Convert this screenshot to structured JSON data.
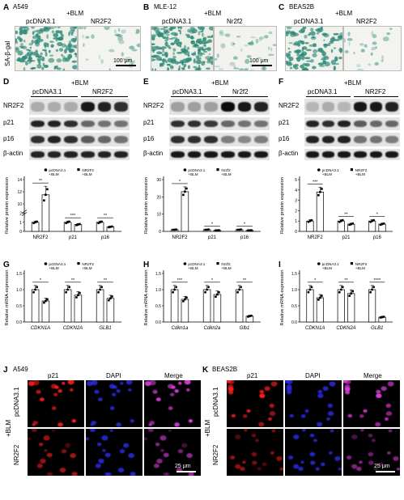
{
  "row1": {
    "A": {
      "letter": "A",
      "cell": "A549",
      "treat": "+BLM",
      "cond": [
        "pcDNA3.1",
        "NR2F2"
      ],
      "ylabel": "SA-β-gal",
      "scale": "100 μm"
    },
    "B": {
      "letter": "B",
      "cell": "MLE-12",
      "treat": "+BLM",
      "cond": [
        "pcDNA3.1",
        "Nr2f2"
      ],
      "scale": "100 μm"
    },
    "C": {
      "letter": "C",
      "cell": "BEAS2B",
      "treat": "+BLM",
      "cond": [
        "pcDNA3.1",
        "NR2F2"
      ]
    }
  },
  "blots": [
    {
      "letter": "D",
      "treat": "+BLM",
      "cond": [
        "pcDNA3.1",
        "NR2F2"
      ],
      "rows": [
        "NR2F2",
        "p21",
        "p16",
        "β-actin"
      ]
    },
    {
      "letter": "E",
      "treat": "+BLM",
      "cond": [
        "pcDNA3.1",
        "Nr2f2"
      ],
      "rows": [
        "NR2F2",
        "p21",
        "p16",
        "β-actin"
      ]
    },
    {
      "letter": "F",
      "treat": "+BLM",
      "cond": [
        "pcDNA3.1",
        "NR2F2"
      ],
      "rows": [
        "NR2F2",
        "p21",
        "p16",
        "β-actin"
      ]
    }
  ],
  "chart_data": [
    {
      "type": "bar",
      "ylabel": "Relative protein expression",
      "categories": [
        "NR2F2",
        "p21",
        "p16"
      ],
      "legend": [
        "pcDNA3.1\n+BLM",
        "NR2F2\n+BLM"
      ],
      "yticks": [
        "0",
        "1",
        "2",
        "10",
        "12",
        "14"
      ],
      "series": [
        {
          "name": "pcDNA3.1 +BLM",
          "values": [
            1.0,
            1.0,
            1.0
          ]
        },
        {
          "name": "NR2F2 +BLM",
          "values": [
            11.5,
            0.75,
            0.5
          ]
        }
      ],
      "sig": [
        "**",
        "***",
        "**"
      ]
    },
    {
      "type": "bar",
      "ylabel": "Relative protein expression",
      "categories": [
        "NR2F2",
        "p21",
        "p16"
      ],
      "legend": [
        "pcDNA3.1\n+BLM",
        "Nr2f2\n+BLM"
      ],
      "yticks": [
        "0",
        "10",
        "20",
        "30"
      ],
      "series": [
        {
          "name": "pcDNA3.1 +BLM",
          "values": [
            1.0,
            1.0,
            1.0
          ]
        },
        {
          "name": "Nr2f2 +BLM",
          "values": [
            23,
            0.6,
            0.6
          ]
        }
      ],
      "sig": [
        "*",
        "*",
        "*"
      ]
    },
    {
      "type": "bar",
      "ylabel": "Relative protein expression",
      "categories": [
        "NR2F2",
        "p21",
        "p16"
      ],
      "legend": [
        "pcDNA3.1\n+BLM",
        "NR2F2\n+BLM"
      ],
      "yticks": [
        "0",
        "1",
        "2",
        "3",
        "4",
        "5"
      ],
      "series": [
        {
          "name": "pcDNA3.1 +BLM",
          "values": [
            1.0,
            1.0,
            1.0
          ]
        },
        {
          "name": "NR2F2 +BLM",
          "values": [
            3.8,
            0.7,
            0.7
          ]
        }
      ],
      "sig": [
        "***",
        "**",
        "*"
      ]
    },
    {
      "type": "bar",
      "ylabel": "Relative mRNA expression",
      "categories": [
        "CDKN1A",
        "CDKN2A",
        "GLB1"
      ],
      "legend": [
        "pcDNA3.1\n+BLM",
        "NR2F2\n+BLM"
      ],
      "yticks": [
        "0.0",
        "0.5",
        "1.0",
        "1.5"
      ],
      "series": [
        {
          "name": "pcDNA3.1 +BLM",
          "values": [
            1.0,
            1.0,
            1.0
          ]
        },
        {
          "name": "NR2F2 +BLM",
          "values": [
            0.65,
            0.83,
            0.73
          ]
        }
      ],
      "sig": [
        "*",
        "**",
        "**"
      ]
    },
    {
      "type": "bar",
      "ylabel": "Relative mRNA expression",
      "categories": [
        "Cdkn1a",
        "Cdkn2a",
        "Glb1"
      ],
      "legend": [
        "pcDNA3.1\n+BLM",
        "Nr2f2\n+BLM"
      ],
      "yticks": [
        "0.0",
        "0.5",
        "1.0",
        "1.5"
      ],
      "series": [
        {
          "name": "pcDNA3.1 +BLM",
          "values": [
            1.0,
            1.0,
            1.0
          ]
        },
        {
          "name": "Nr2f2 +BLM",
          "values": [
            0.7,
            0.85,
            0.18
          ]
        }
      ],
      "sig": [
        "***",
        "*",
        "**"
      ]
    },
    {
      "type": "bar",
      "ylabel": "Relative mRNA expression",
      "categories": [
        "CDKN1A",
        "CDKN2A",
        "GLB1"
      ],
      "legend": [
        "pcDNA3.1\n+BLM",
        "NR2F2\n+BLM"
      ],
      "yticks": [
        "0.0",
        "0.5",
        "1.0",
        "1.5"
      ],
      "series": [
        {
          "name": "pcDNA3.1 +BLM",
          "values": [
            1.0,
            1.0,
            1.0
          ]
        },
        {
          "name": "NR2F2 +BLM",
          "values": [
            0.75,
            0.88,
            0.15
          ]
        }
      ],
      "sig": [
        "*",
        "**",
        "****"
      ]
    }
  ],
  "if": [
    {
      "letter": "J",
      "cell": "A549",
      "cols": [
        "p21",
        "DAPI",
        "Merge"
      ],
      "rows": [
        "pcDNA3.1",
        "NR2F2"
      ],
      "treat": "+BLM",
      "scale": "25 μm"
    },
    {
      "letter": "K",
      "cell": "BEAS2B",
      "cols": [
        "p21",
        "DAPI",
        "Merge"
      ],
      "rows": [
        "pcDNA3.1",
        "NR2F2"
      ],
      "treat": "+BLM",
      "scale": "25 μm"
    }
  ],
  "panel_letters": {
    "G": "G",
    "H": "H",
    "I": "I"
  },
  "colors": {
    "sa_gal": "#2f8a7a",
    "p21": "#ff2020",
    "dapi": "#3030ff",
    "merge": "#e040e0"
  }
}
